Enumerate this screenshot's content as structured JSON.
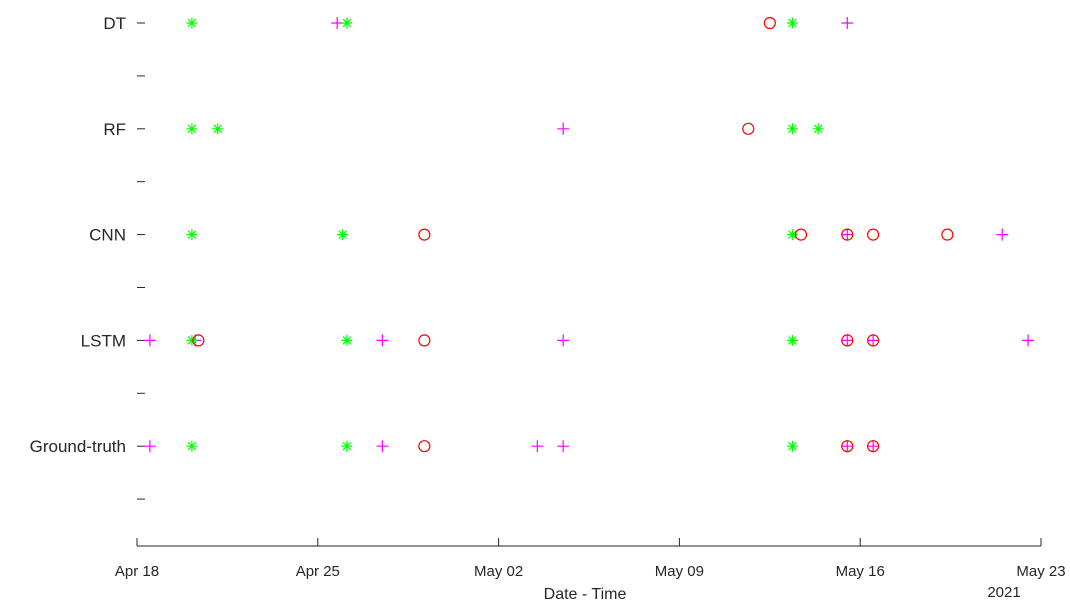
{
  "chart_data": {
    "type": "scatter",
    "xlabel": "Date - Time",
    "ylabel": "",
    "title": "",
    "xlim": [
      "2021-04-18",
      "2021-05-23"
    ],
    "x_tick_labels": [
      "Apr 18",
      "Apr 25",
      "May 02",
      "May 09",
      "May 16",
      "May 23"
    ],
    "x_tick_dates": [
      "2021-04-18",
      "2021-04-25",
      "2021-05-02",
      "2021-05-09",
      "2021-05-16",
      "2021-05-23"
    ],
    "x_year_label": "2021",
    "categories": [
      "DT",
      "RF",
      "CNN",
      "LSTM",
      "Ground-truth"
    ],
    "grid": false,
    "legend": "none",
    "colors": {
      "plus": "#ff00ff",
      "star": "#00ff00",
      "circle": "#ff0000"
    },
    "series": [
      {
        "marker": "plus",
        "points": [
          {
            "row": "DT",
            "x": "2021-04-25 18:00"
          },
          {
            "row": "DT",
            "x": "2021-05-15 12:00"
          },
          {
            "row": "RF",
            "x": "2021-05-04 12:00"
          },
          {
            "row": "CNN",
            "x": "2021-05-15 12:00"
          },
          {
            "row": "CNN",
            "x": "2021-05-21 12:00"
          },
          {
            "row": "LSTM",
            "x": "2021-04-18 12:00"
          },
          {
            "row": "LSTM",
            "x": "2021-04-20 06:00"
          },
          {
            "row": "LSTM",
            "x": "2021-04-27 12:00"
          },
          {
            "row": "LSTM",
            "x": "2021-05-04 12:00"
          },
          {
            "row": "LSTM",
            "x": "2021-05-15 12:00"
          },
          {
            "row": "LSTM",
            "x": "2021-05-16 12:00"
          },
          {
            "row": "LSTM",
            "x": "2021-05-22 12:00"
          },
          {
            "row": "Ground-truth",
            "x": "2021-04-18 12:00"
          },
          {
            "row": "Ground-truth",
            "x": "2021-04-27 12:00"
          },
          {
            "row": "Ground-truth",
            "x": "2021-05-03 12:00"
          },
          {
            "row": "Ground-truth",
            "x": "2021-05-04 12:00"
          },
          {
            "row": "Ground-truth",
            "x": "2021-05-15 12:00"
          },
          {
            "row": "Ground-truth",
            "x": "2021-05-16 12:00"
          }
        ]
      },
      {
        "marker": "star",
        "points": [
          {
            "row": "DT",
            "x": "2021-04-20 03:00"
          },
          {
            "row": "DT",
            "x": "2021-04-26 03:00"
          },
          {
            "row": "DT",
            "x": "2021-05-13 09:00"
          },
          {
            "row": "RF",
            "x": "2021-04-20 03:00"
          },
          {
            "row": "RF",
            "x": "2021-04-21 03:00"
          },
          {
            "row": "RF",
            "x": "2021-05-13 09:00"
          },
          {
            "row": "RF",
            "x": "2021-05-14 09:00"
          },
          {
            "row": "CNN",
            "x": "2021-04-20 03:00"
          },
          {
            "row": "CNN",
            "x": "2021-04-25 23:00"
          },
          {
            "row": "CNN",
            "x": "2021-05-13 09:00"
          },
          {
            "row": "LSTM",
            "x": "2021-04-20 03:00"
          },
          {
            "row": "LSTM",
            "x": "2021-04-26 03:00"
          },
          {
            "row": "LSTM",
            "x": "2021-05-13 09:00"
          },
          {
            "row": "Ground-truth",
            "x": "2021-04-20 03:00"
          },
          {
            "row": "Ground-truth",
            "x": "2021-04-26 03:00"
          },
          {
            "row": "Ground-truth",
            "x": "2021-05-13 09:00"
          }
        ]
      },
      {
        "marker": "circle",
        "points": [
          {
            "row": "DT",
            "x": "2021-05-12 12:00"
          },
          {
            "row": "RF",
            "x": "2021-05-11 16:00"
          },
          {
            "row": "CNN",
            "x": "2021-04-29 03:00"
          },
          {
            "row": "CNN",
            "x": "2021-05-13 17:00"
          },
          {
            "row": "CNN",
            "x": "2021-05-15 12:00"
          },
          {
            "row": "CNN",
            "x": "2021-05-16 12:00"
          },
          {
            "row": "CNN",
            "x": "2021-05-19 09:00"
          },
          {
            "row": "LSTM",
            "x": "2021-04-20 09:00"
          },
          {
            "row": "LSTM",
            "x": "2021-04-29 03:00"
          },
          {
            "row": "LSTM",
            "x": "2021-05-15 12:00"
          },
          {
            "row": "LSTM",
            "x": "2021-05-16 12:00"
          },
          {
            "row": "Ground-truth",
            "x": "2021-04-29 03:00"
          },
          {
            "row": "Ground-truth",
            "x": "2021-05-15 12:00"
          },
          {
            "row": "Ground-truth",
            "x": "2021-05-16 12:00"
          }
        ]
      }
    ]
  }
}
